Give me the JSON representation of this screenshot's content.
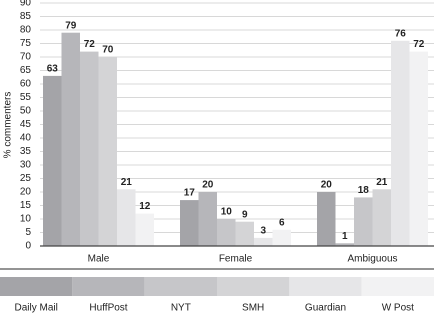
{
  "chart_data": {
    "type": "bar",
    "y_label": "% commenters",
    "categories": [
      "Male",
      "Female",
      "Ambiguous"
    ],
    "series": [
      {
        "name": "Daily Mail",
        "color": "#a4a4a8",
        "values": [
          63,
          17,
          20
        ]
      },
      {
        "name": "HuffPost",
        "color": "#b6b6ba",
        "values": [
          79,
          20,
          1
        ]
      },
      {
        "name": "NYT",
        "color": "#c6c6c9",
        "values": [
          72,
          10,
          18
        ]
      },
      {
        "name": "SMH",
        "color": "#d4d4d6",
        "values": [
          70,
          9,
          21
        ]
      },
      {
        "name": "Guardian",
        "color": "#e6e6e8",
        "values": [
          21,
          3,
          76
        ]
      },
      {
        "name": "W Post",
        "color": "#f2f2f3",
        "values": [
          12,
          6,
          72
        ]
      }
    ],
    "ylim": [
      0,
      90
    ],
    "yticks": [
      0,
      5,
      10,
      15,
      20,
      25,
      30,
      35,
      40,
      45,
      50,
      55,
      60,
      65,
      70,
      75,
      80,
      85,
      90
    ],
    "grid": true,
    "legend": "bottom"
  }
}
